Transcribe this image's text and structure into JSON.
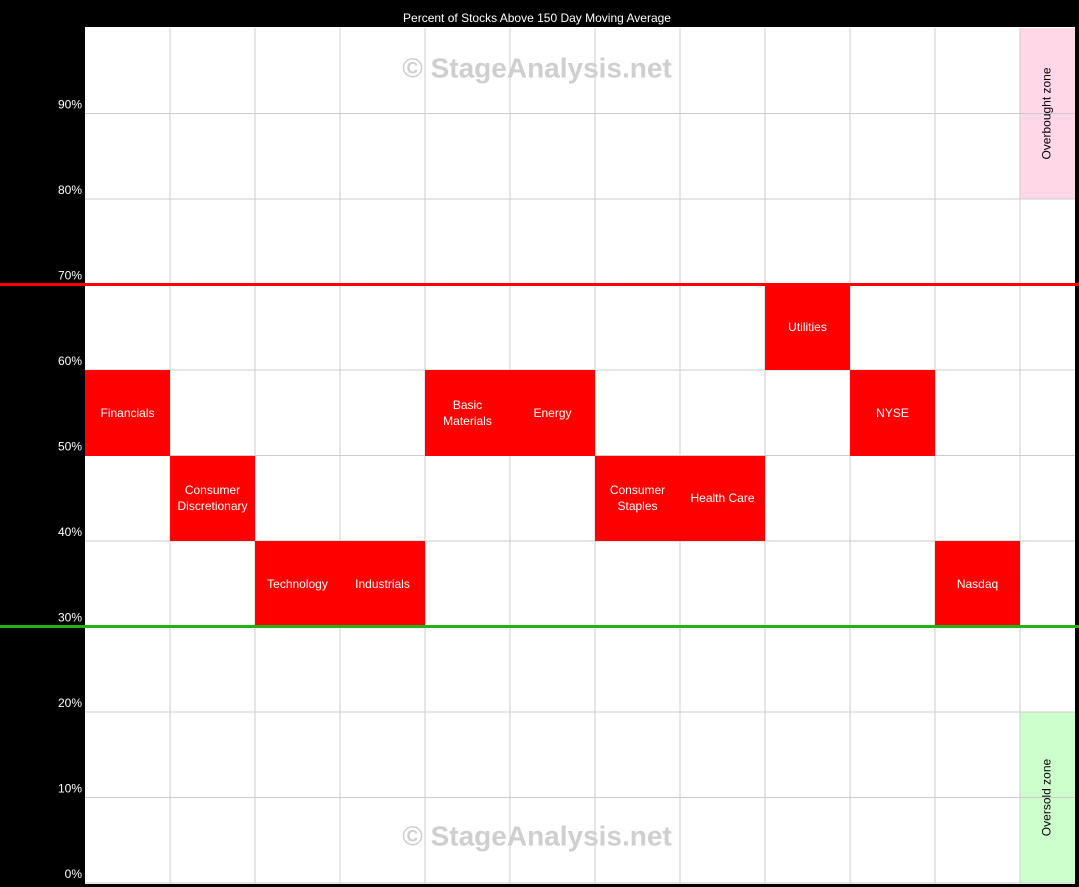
{
  "chart_data": {
    "type": "band-grid",
    "title": "Percent of Stocks Above 150 Day Moving Average",
    "watermark": "© StageAnalysis.net",
    "categories": [
      "Financials",
      "Consumer Discretionary",
      "Technology",
      "Industrials",
      "Basic Materials",
      "Energy",
      "Consumer Staples",
      "Health Care",
      "Utilities",
      "NYSE",
      "Nasdaq"
    ],
    "values": [
      50,
      40,
      30,
      30,
      50,
      50,
      40,
      40,
      60,
      50,
      30
    ],
    "color": "#ff0000",
    "ylim": [
      0,
      100
    ],
    "yticks": [
      {
        "value": 0,
        "label": "0%"
      },
      {
        "value": 10,
        "label": "10%"
      },
      {
        "value": 20,
        "label": "20%"
      },
      {
        "value": 30,
        "label": "30%"
      },
      {
        "value": 40,
        "label": "40%"
      },
      {
        "value": 50,
        "label": "50%"
      },
      {
        "value": 60,
        "label": "60%"
      },
      {
        "value": 70,
        "label": "70%"
      },
      {
        "value": 80,
        "label": "80%"
      },
      {
        "value": 90,
        "label": "90%"
      }
    ],
    "grid": true,
    "reference_lines": [
      {
        "value": 70,
        "color": "#ff0000"
      },
      {
        "value": 30,
        "color": "#22b214"
      }
    ],
    "zones": [
      {
        "label": "Overbought zone",
        "range": [
          80,
          100
        ],
        "color": "#ffd7e6"
      },
      {
        "label": "Oversold zone",
        "range": [
          0,
          20
        ],
        "color": "#ccffcc"
      }
    ]
  }
}
